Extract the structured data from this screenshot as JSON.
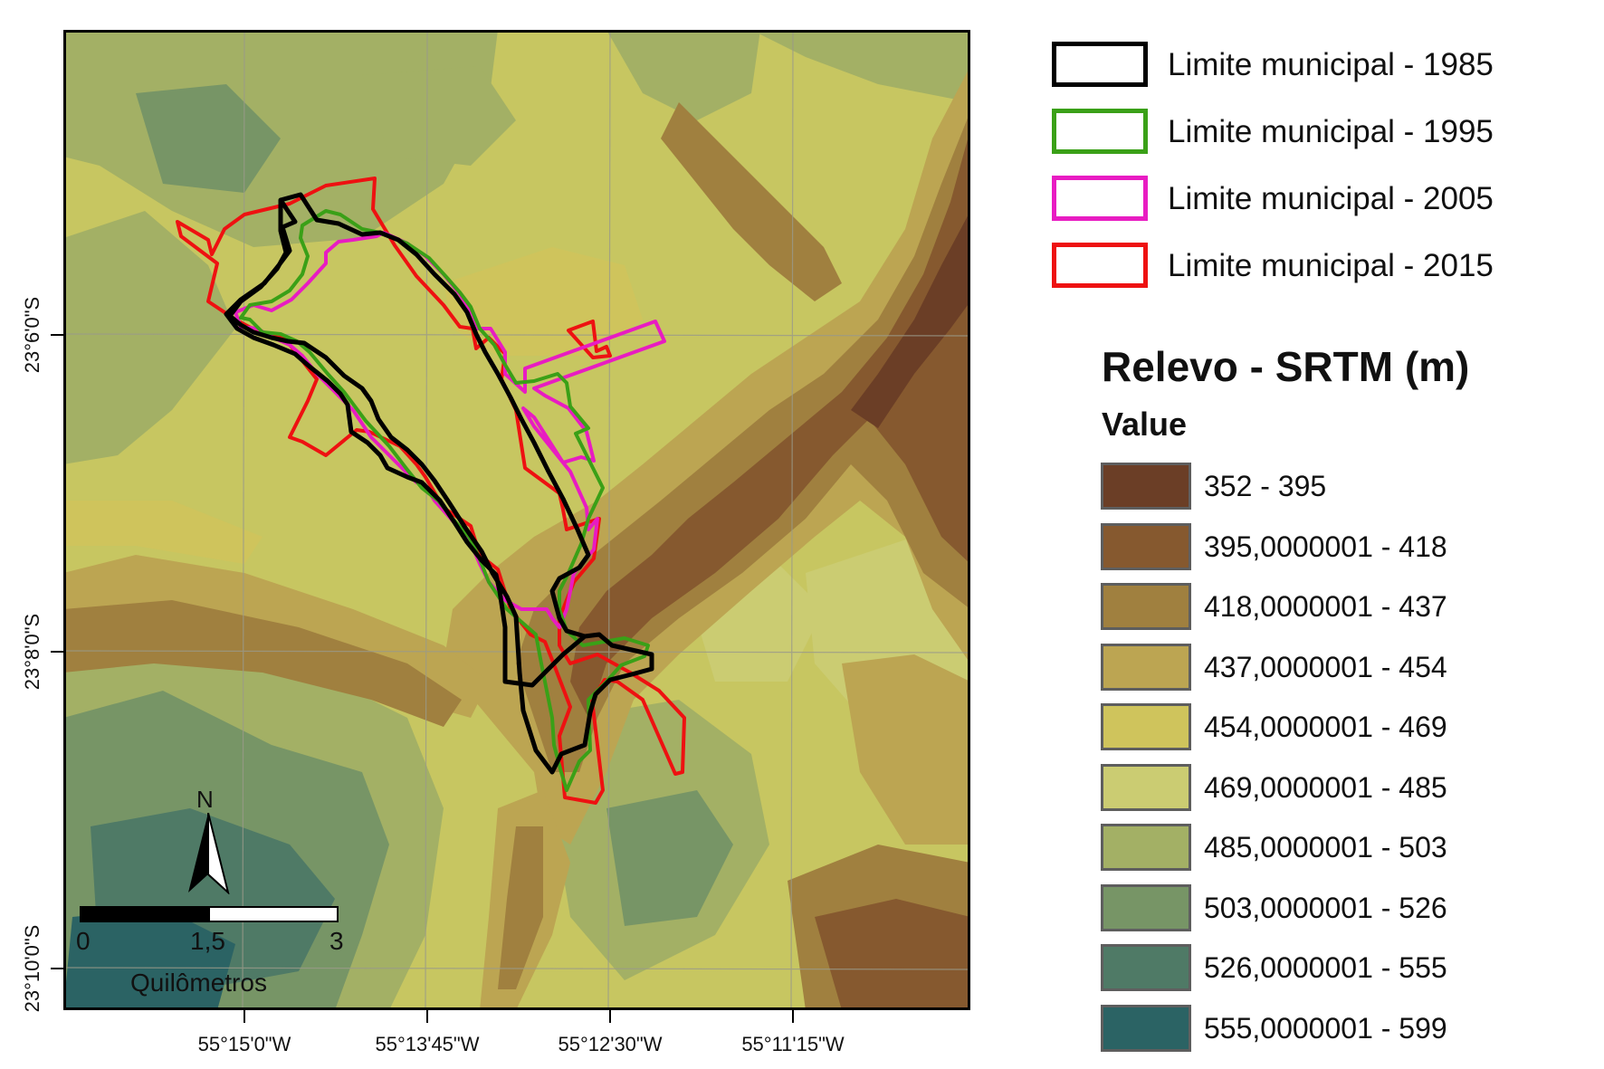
{
  "map": {
    "x_ticks": [
      "55°15'0\"W",
      "55°13'45\"W",
      "55°12'30\"W",
      "55°11'15\"W"
    ],
    "y_ticks": [
      "23°6'0\"S",
      "23°8'0\"S",
      "23°10'0\"S"
    ],
    "north_label": "N",
    "scale": {
      "labels": [
        "0",
        "1,5",
        "3"
      ],
      "unit": "Quilômetros"
    }
  },
  "legend": {
    "boundaries": [
      {
        "label": "Limite municipal - 1985",
        "color": "#000000"
      },
      {
        "label": "Limite municipal - 1995",
        "color": "#3aa017"
      },
      {
        "label": "Limite municipal - 2005",
        "color": "#e81cc2"
      },
      {
        "label": "Limite municipal - 2015",
        "color": "#ee1111"
      }
    ],
    "relief_title": "Relevo - SRTM (m)",
    "relief_subtitle": "Value",
    "classes": [
      {
        "label": "352 - 395",
        "color": "#6b3e26"
      },
      {
        "label": "395,0000001 - 418",
        "color": "#86592f"
      },
      {
        "label": "418,0000001 - 437",
        "color": "#a0803f"
      },
      {
        "label": "437,0000001 - 454",
        "color": "#bca552"
      },
      {
        "label": "454,0000001 - 469",
        "color": "#cfc45c"
      },
      {
        "label": "469,0000001 - 485",
        "color": "#cbcc72"
      },
      {
        "label": "485,0000001 - 503",
        "color": "#a3b065"
      },
      {
        "label": "503,0000001 - 526",
        "color": "#779566"
      },
      {
        "label": "526,0000001 - 555",
        "color": "#4f7a66"
      },
      {
        "label": "555,0000001 - 599",
        "color": "#2b6364"
      }
    ]
  }
}
